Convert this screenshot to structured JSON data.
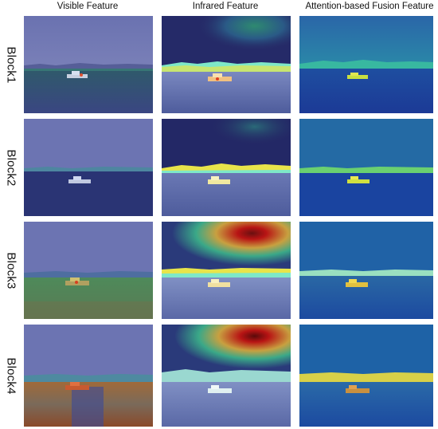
{
  "figure": {
    "column_headers": [
      "Visible Feature",
      "Infrared Feature",
      "Attention-based Fusion Feature"
    ],
    "row_labels": [
      "Block1",
      "Block2",
      "Block3",
      "Block4"
    ]
  },
  "panels": [
    {
      "row": "Block1",
      "column": "Visible Feature",
      "content": "heatmap-overlay"
    },
    {
      "row": "Block1",
      "column": "Infrared Feature",
      "content": "heatmap-overlay"
    },
    {
      "row": "Block1",
      "column": "Attention-based Fusion Feature",
      "content": "heatmap-overlay"
    },
    {
      "row": "Block2",
      "column": "Visible Feature",
      "content": "heatmap-overlay"
    },
    {
      "row": "Block2",
      "column": "Infrared Feature",
      "content": "heatmap-overlay"
    },
    {
      "row": "Block2",
      "column": "Attention-based Fusion Feature",
      "content": "heatmap-overlay"
    },
    {
      "row": "Block3",
      "column": "Visible Feature",
      "content": "heatmap-overlay"
    },
    {
      "row": "Block3",
      "column": "Infrared Feature",
      "content": "heatmap-overlay"
    },
    {
      "row": "Block3",
      "column": "Attention-based Fusion Feature",
      "content": "heatmap-overlay"
    },
    {
      "row": "Block4",
      "column": "Visible Feature",
      "content": "heatmap-overlay"
    },
    {
      "row": "Block4",
      "column": "Infrared Feature",
      "content": "heatmap-overlay"
    },
    {
      "row": "Block4",
      "column": "Attention-based Fusion Feature",
      "content": "heatmap-overlay"
    }
  ],
  "colors": {
    "sky_visible": "#6c74b2",
    "sea_visible": "#3a4484",
    "sky_infrared": "#262a66",
    "sea_infrared": "#5a68a6",
    "sky_fusion": "#1e62a6",
    "sea_fusion": "#1c3f9a",
    "hot_red": "#b81414",
    "hot_yellow": "#e8e44a",
    "horizon_cyan": "#7ee8c8"
  }
}
